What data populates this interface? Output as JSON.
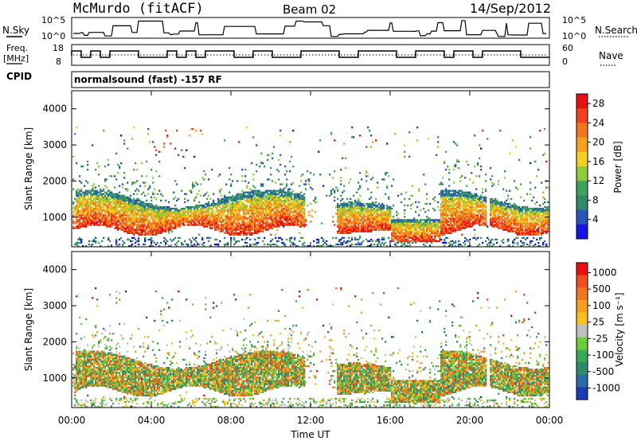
{
  "header": {
    "station": "McMurdo (fitACF)",
    "beam": "Beam 02",
    "date": "14/Sep/2012"
  },
  "top_panel": {
    "left_label": "N.Sky",
    "left_ticks": [
      "10^5",
      "10^0"
    ],
    "right_ticks": [
      "10^5",
      "10^0"
    ],
    "right_label": "N.Search"
  },
  "freq_panel": {
    "left_label_line1": "Freq.",
    "left_label_line2": "[MHz]",
    "left_ticks": [
      "18",
      "8"
    ],
    "right_ticks": [
      "60",
      "0"
    ],
    "right_label": "Nave"
  },
  "cpid": {
    "label": "CPID",
    "text": "normalsound (fast) -157 RF"
  },
  "chart_data": [
    {
      "type": "heatmap",
      "name": "power",
      "ylabel": "Slant Range [km]",
      "ylim": [
        180,
        4500
      ],
      "yticks": [
        "1000",
        "2000",
        "3000",
        "4000"
      ],
      "xlim": [
        0,
        24
      ],
      "colorbar_label": "Power [dB]",
      "colorbar_ticks": [
        "4",
        "8",
        "12",
        "16",
        "20",
        "24",
        "28"
      ],
      "colors": [
        "#1414e6",
        "#2a55b8",
        "#2f8a6a",
        "#3da35a",
        "#8fcc3a",
        "#f0d020",
        "#f5a020",
        "#f07820",
        "#f04020",
        "#e81010"
      ]
    },
    {
      "type": "heatmap",
      "name": "velocity",
      "ylabel": "Slant Range [km]",
      "ylim": [
        180,
        4500
      ],
      "yticks": [
        "1000",
        "2000",
        "3000",
        "4000"
      ],
      "xlim": [
        0,
        24
      ],
      "xlabel": "Time UT",
      "xticks": [
        "00:00",
        "04:00",
        "08:00",
        "12:00",
        "16:00",
        "20:00",
        "00:00"
      ],
      "colorbar_label": "Velocity [m s⁻¹]",
      "colorbar_ticks": [
        "1000",
        "500",
        "100",
        "25",
        "-25",
        "-100",
        "-500",
        "-1000"
      ],
      "colors": [
        "#1a3cb4",
        "#2b6aa8",
        "#2f8a6a",
        "#3aa85a",
        "#6ccc3a",
        "#c0c0c0",
        "#f5c020",
        "#f5a020",
        "#f07820",
        "#f05020",
        "#e81010"
      ]
    }
  ]
}
